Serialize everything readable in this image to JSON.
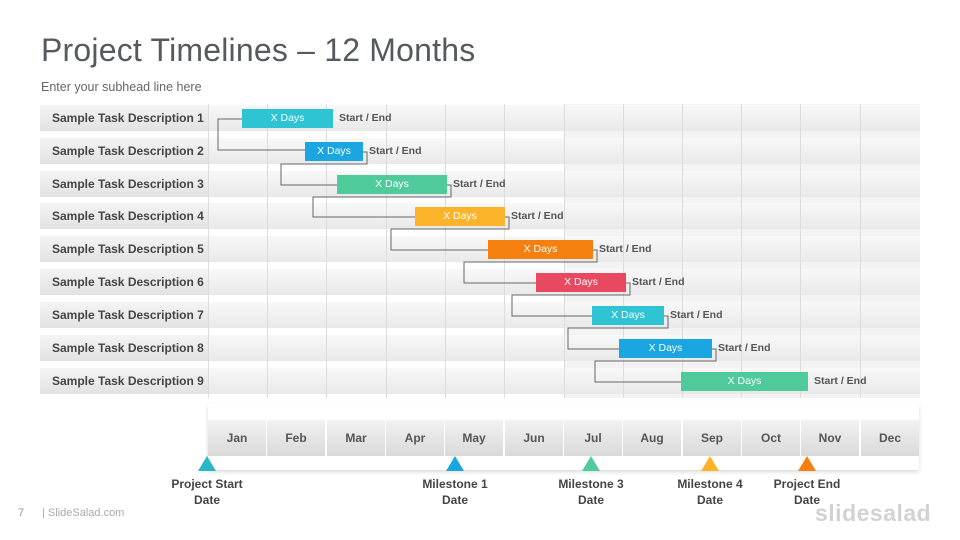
{
  "slide": {
    "title": "Project Timelines – 12 Months",
    "subhead": "Enter your subhead  line here",
    "page_number": "7",
    "footer_brand": "| SlideSalad.com",
    "logo_text": "slidesalad"
  },
  "tasks": [
    {
      "label": "Sample Task Description 1",
      "bar_text": "X Days",
      "note": "Start / End",
      "color": "#2ec4d4"
    },
    {
      "label": "Sample Task Description 2",
      "bar_text": "X Days",
      "note": "Start / End",
      "color": "#1aa6e0"
    },
    {
      "label": "Sample Task Description 3",
      "bar_text": "X Days",
      "note": "Start / End",
      "color": "#4fcb9b"
    },
    {
      "label": "Sample Task Description 4",
      "bar_text": "X Days",
      "note": "Start / End",
      "color": "#fbb42a"
    },
    {
      "label": "Sample Task Description 5",
      "bar_text": "X Days",
      "note": "Start / End",
      "color": "#f5800f"
    },
    {
      "label": "Sample Task Description 6",
      "bar_text": "X Days",
      "note": "Start / End",
      "color": "#e84860"
    },
    {
      "label": "Sample Task Description 7",
      "bar_text": "X Days",
      "note": "Start / End",
      "color": "#2ec4d4"
    },
    {
      "label": "Sample Task Description 8",
      "bar_text": "X Days",
      "note": "Start / End",
      "color": "#1aa6e0"
    },
    {
      "label": "Sample Task Description 9",
      "bar_text": "X Days",
      "note": "Start / End",
      "color": "#4fcb9b"
    }
  ],
  "months": [
    "Jan",
    "Feb",
    "Mar",
    "Apr",
    "May",
    "Jun",
    "Jul",
    "Aug",
    "Sep",
    "Oct",
    "Nov",
    "Dec"
  ],
  "milestones": [
    {
      "label_line1": "Project Start",
      "label_line2": "Date",
      "color": "#29b6c9"
    },
    {
      "label_line1": "Milestone 1",
      "label_line2": "Date",
      "color": "#1aa6e0"
    },
    {
      "label_line1": "Milestone 3",
      "label_line2": "Date",
      "color": "#4fcb9b"
    },
    {
      "label_line1": "Milestone 4",
      "label_line2": "Date",
      "color": "#fbb42a"
    },
    {
      "label_line1": "Project End",
      "label_line2": "Date",
      "color": "#f5800f"
    }
  ]
}
